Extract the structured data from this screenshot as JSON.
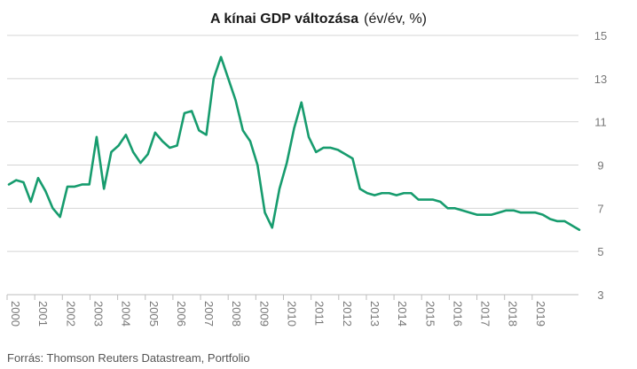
{
  "chart_data": {
    "type": "line",
    "title": "A kínai GDP változása",
    "title_suffix": "(év/év, %)",
    "source": "Forrás: Thomson Reuters Datastream, Portfolio",
    "ylim": [
      3,
      15
    ],
    "yticks": [
      "15",
      "13",
      "11",
      "9",
      "7",
      "5",
      "3"
    ],
    "xticks": [
      "2000",
      "2001",
      "2002",
      "2003",
      "2004",
      "2005",
      "2006",
      "2007",
      "2008",
      "2009",
      "2010",
      "2011",
      "2012",
      "2013",
      "2014",
      "2015",
      "2016",
      "2017",
      "2018",
      "2019"
    ],
    "grid": true,
    "y_axis_side": "right",
    "line_color": "#179c6e",
    "series": [
      {
        "values": [
          8.1,
          8.3,
          8.2,
          7.3,
          8.4,
          7.8,
          7.0,
          6.6,
          8.0,
          8.0,
          8.1,
          8.1,
          10.3,
          7.9,
          9.6,
          9.9,
          10.4,
          9.6,
          9.1,
          9.5,
          10.5,
          10.1,
          9.8,
          9.9,
          11.4,
          11.5,
          10.6,
          10.4,
          13.0,
          14.0,
          13.0,
          12.0,
          10.6,
          10.1,
          9.0,
          6.8,
          6.1,
          7.9,
          9.1,
          10.7,
          11.9,
          10.3,
          9.6,
          9.8,
          9.8,
          9.7,
          9.5,
          9.3,
          7.9,
          7.7,
          7.6,
          7.7,
          7.7,
          7.6,
          7.7,
          7.7,
          7.4,
          7.4,
          7.4,
          7.3,
          7.0,
          7.0,
          6.9,
          6.8,
          6.7,
          6.7,
          6.7,
          6.8,
          6.9,
          6.9,
          6.8,
          6.8,
          6.8,
          6.7,
          6.5,
          6.4,
          6.4,
          6.2,
          6.0
        ]
      }
    ]
  }
}
